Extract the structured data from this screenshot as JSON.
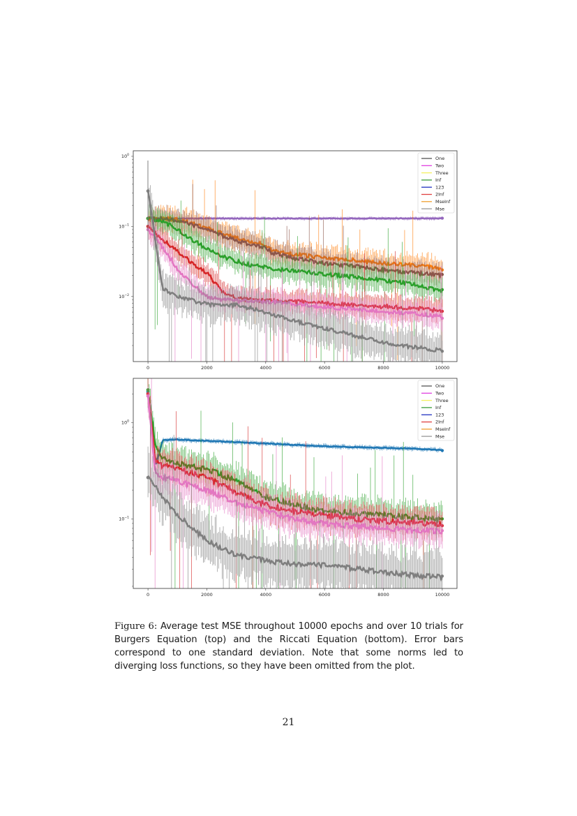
{
  "figure": {
    "label": "Figure 6:",
    "caption": "Average test MSE throughout 10000 epochs and over 10 trials for Burgers Equation (top) and the Riccati Equation (bottom). Error bars correspond to one standard deviation. Note that some norms led to diverging loss functions, so they have been omitted from the plot."
  },
  "page_number": "21",
  "legend_entries": [
    {
      "label": "One",
      "color": "#555555"
    },
    {
      "label": "Two",
      "color": "#e040e0"
    },
    {
      "label": "Three",
      "color": "#f5f060"
    },
    {
      "label": "Inf",
      "color": "#3a9a3a"
    },
    {
      "label": "123",
      "color": "#2030c0"
    },
    {
      "label": "2Inf",
      "color": "#e04040"
    },
    {
      "label": "MseInf",
      "color": "#f0a030"
    },
    {
      "label": "Mse",
      "color": "#999999"
    }
  ],
  "chart_data": [
    {
      "type": "line",
      "title": "Burgers Equation (top)",
      "xlabel": "",
      "ylabel": "",
      "yscale": "log",
      "xlim": [
        -500,
        10500
      ],
      "ylim": [
        0.00118,
        1.2
      ],
      "x_ticks": [
        "0",
        "2000",
        "4000",
        "6000",
        "8000",
        "10000"
      ],
      "y_ticks": [
        "10^0",
        "10^-1",
        "10^-2"
      ],
      "grid": false,
      "legend_position": "upper right",
      "legend": [
        "One",
        "Two",
        "Three",
        "Inf",
        "123",
        "2Inf",
        "MseInf",
        "Mse"
      ],
      "x": [
        0,
        500,
        1000,
        1500,
        2000,
        2500,
        3000,
        3500,
        4000,
        4200,
        5000,
        6000,
        7000,
        8000,
        9000,
        10000
      ],
      "series": [
        {
          "name": "purple (123)",
          "color": "#9467bd",
          "values": [
            0.13,
            0.13,
            0.13,
            0.13,
            0.13,
            0.13,
            0.13,
            0.13,
            0.13,
            0.13,
            0.13,
            0.13,
            0.13,
            0.13,
            0.13,
            0.13
          ]
        },
        {
          "name": "orange (MseInf)",
          "color": "#ff7f0e",
          "values": [
            0.13,
            0.13,
            0.125,
            0.11,
            0.095,
            0.08,
            0.068,
            0.06,
            0.055,
            0.045,
            0.04,
            0.036,
            0.033,
            0.03,
            0.028,
            0.025
          ]
        },
        {
          "name": "brown",
          "color": "#8c564b",
          "values": [
            0.13,
            0.13,
            0.12,
            0.105,
            0.09,
            0.075,
            0.063,
            0.055,
            0.05,
            0.042,
            0.035,
            0.03,
            0.027,
            0.024,
            0.022,
            0.02
          ]
        },
        {
          "name": "green (Inf)",
          "color": "#2ca02c",
          "values": [
            0.13,
            0.12,
            0.09,
            0.065,
            0.048,
            0.038,
            0.032,
            0.028,
            0.026,
            0.025,
            0.023,
            0.021,
            0.019,
            0.017,
            0.015,
            0.012
          ]
        },
        {
          "name": "red (2Inf)",
          "color": "#d62728",
          "values": [
            0.1,
            0.065,
            0.045,
            0.03,
            0.022,
            0.012,
            0.0095,
            0.009,
            0.0088,
            0.0087,
            0.0085,
            0.008,
            0.0075,
            0.0072,
            0.0068,
            0.0063
          ]
        },
        {
          "name": "pink (Two)",
          "color": "#e377c2",
          "values": [
            0.09,
            0.05,
            0.025,
            0.015,
            0.01,
            0.009,
            0.0088,
            0.0086,
            0.0085,
            0.0084,
            0.0078,
            0.0072,
            0.0066,
            0.0061,
            0.0057,
            0.0052
          ]
        },
        {
          "name": "gray (Mse)",
          "color": "#7f7f7f",
          "values": [
            0.32,
            0.013,
            0.01,
            0.0088,
            0.0078,
            0.0075,
            0.0076,
            0.0068,
            0.006,
            0.0055,
            0.0045,
            0.0035,
            0.0028,
            0.0022,
            0.0019,
            0.0017
          ]
        }
      ]
    },
    {
      "type": "line",
      "title": "Riccati Equation (bottom)",
      "xlabel": "",
      "ylabel": "",
      "yscale": "log",
      "xlim": [
        -500,
        10500
      ],
      "ylim": [
        0.019,
        2.9
      ],
      "x_ticks": [
        "0",
        "2000",
        "4000",
        "6000",
        "8000",
        "10000"
      ],
      "y_ticks": [
        "10^0",
        "10^-1"
      ],
      "grid": false,
      "legend_position": "upper right",
      "legend": [
        "One",
        "Two",
        "Three",
        "Inf",
        "123",
        "2Inf",
        "MseInf",
        "Mse"
      ],
      "x": [
        0,
        250,
        500,
        1000,
        2000,
        3000,
        4000,
        5000,
        6000,
        7000,
        8000,
        9000,
        10000
      ],
      "series": [
        {
          "name": "blue",
          "color": "#1f77b4",
          "values": [
            2.1,
            0.35,
            0.66,
            0.67,
            0.65,
            0.63,
            0.61,
            0.59,
            0.57,
            0.56,
            0.55,
            0.54,
            0.52
          ]
        },
        {
          "name": "green (Inf)",
          "color": "#2ca02c",
          "values": [
            2.2,
            0.6,
            0.42,
            0.38,
            0.33,
            0.25,
            0.17,
            0.14,
            0.12,
            0.115,
            0.11,
            0.105,
            0.1
          ]
        },
        {
          "name": "red (2Inf)",
          "color": "#d62728",
          "values": [
            2.0,
            0.4,
            0.36,
            0.33,
            0.27,
            0.19,
            0.14,
            0.12,
            0.11,
            0.1,
            0.095,
            0.092,
            0.088
          ]
        },
        {
          "name": "pink (Two)",
          "color": "#e377c2",
          "values": [
            1.9,
            0.3,
            0.27,
            0.25,
            0.2,
            0.15,
            0.12,
            0.1,
            0.09,
            0.085,
            0.08,
            0.077,
            0.075
          ]
        },
        {
          "name": "gray (Mse)",
          "color": "#7f7f7f",
          "values": [
            0.27,
            0.22,
            0.17,
            0.11,
            0.06,
            0.042,
            0.037,
            0.034,
            0.033,
            0.031,
            0.028,
            0.026,
            0.025
          ]
        }
      ]
    }
  ]
}
